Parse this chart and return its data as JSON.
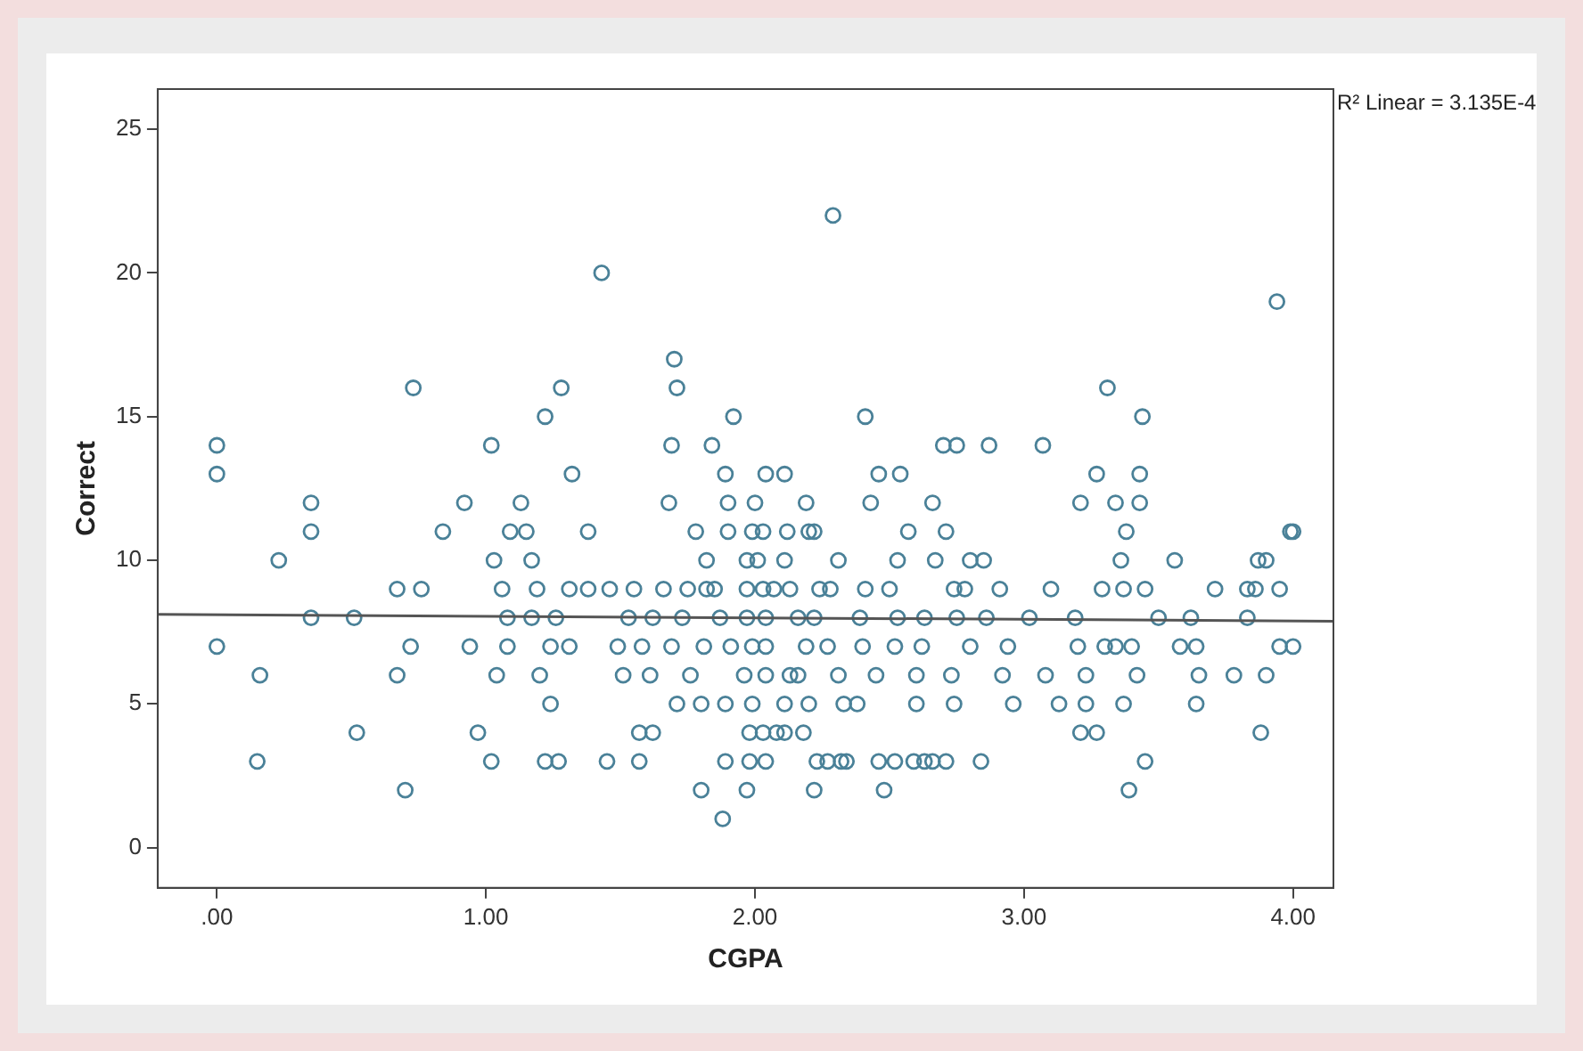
{
  "chart_data": {
    "type": "scatter",
    "xlabel": "CGPA",
    "ylabel": "Correct",
    "annotations": [
      "R² Linear = 3.135E-4"
    ],
    "xlim": [
      -0.22,
      4.15
    ],
    "xticks": [
      {
        "value": 0,
        "label": ".00"
      },
      {
        "value": 1,
        "label": "1.00"
      },
      {
        "value": 2,
        "label": "2.00"
      },
      {
        "value": 3,
        "label": "3.00"
      },
      {
        "value": 4,
        "label": "4.00"
      }
    ],
    "ylim": [
      -1.4,
      26.4
    ],
    "yticks": [
      0,
      5,
      10,
      15,
      20,
      25
    ],
    "grid": false,
    "legend": false,
    "series": [
      {
        "marker": "circle",
        "color": "#4a8198",
        "x": [
          2.29,
          1.43,
          3.94,
          1.7,
          0.73,
          1.28,
          1.71,
          3.31,
          1.22,
          1.92,
          2.41,
          3.44,
          0.0,
          1.02,
          1.69,
          1.84,
          2.7,
          2.75,
          2.87,
          3.07,
          0.0,
          1.32,
          1.89,
          2.04,
          2.11,
          2.46,
          2.54,
          3.27,
          3.43,
          0.35,
          0.92,
          1.13,
          1.68,
          1.9,
          2.0,
          2.19,
          2.43,
          2.66,
          3.21,
          3.34,
          3.43,
          0.35,
          0.84,
          1.09,
          1.15,
          1.38,
          1.78,
          1.9,
          1.99,
          2.03,
          2.12,
          2.2,
          2.22,
          2.57,
          2.71,
          3.38,
          3.99,
          4.0,
          0.23,
          1.03,
          1.17,
          1.82,
          1.97,
          2.01,
          2.11,
          2.31,
          2.53,
          2.67,
          2.8,
          2.85,
          3.36,
          3.56,
          3.87,
          3.9,
          0.67,
          0.76,
          1.06,
          1.19,
          1.31,
          1.38,
          1.46,
          1.55,
          1.66,
          1.75,
          1.82,
          1.85,
          1.97,
          2.03,
          2.07,
          2.13,
          2.24,
          2.28,
          2.41,
          2.5,
          2.74,
          2.78,
          2.91,
          3.1,
          3.29,
          3.37,
          3.45,
          3.71,
          3.83,
          3.86,
          3.95,
          0.35,
          0.51,
          1.08,
          1.17,
          1.26,
          1.53,
          1.62,
          1.73,
          1.87,
          1.97,
          2.04,
          2.16,
          2.22,
          2.39,
          2.53,
          2.63,
          2.75,
          2.86,
          3.02,
          3.19,
          3.5,
          3.62,
          3.83,
          0.0,
          0.72,
          0.94,
          1.08,
          1.24,
          1.31,
          1.49,
          1.58,
          1.69,
          1.81,
          1.91,
          1.99,
          2.04,
          2.19,
          2.27,
          2.4,
          2.52,
          2.62,
          2.8,
          2.94,
          3.2,
          3.3,
          3.34,
          3.4,
          3.58,
          3.64,
          3.95,
          4.0,
          0.16,
          0.67,
          1.04,
          1.2,
          1.51,
          1.61,
          1.76,
          1.96,
          2.04,
          2.13,
          2.16,
          2.31,
          2.45,
          2.6,
          2.73,
          2.92,
          3.08,
          3.23,
          3.42,
          3.65,
          3.78,
          3.9,
          1.24,
          1.71,
          1.8,
          1.89,
          1.99,
          2.11,
          2.2,
          2.33,
          2.38,
          2.6,
          2.74,
          2.96,
          3.13,
          3.23,
          3.37,
          3.64,
          0.52,
          0.97,
          1.57,
          1.62,
          1.98,
          2.03,
          2.08,
          2.11,
          2.18,
          3.21,
          3.27,
          3.88,
          0.15,
          1.02,
          1.22,
          1.27,
          1.45,
          1.57,
          1.89,
          1.98,
          2.04,
          2.23,
          2.27,
          2.32,
          2.34,
          2.46,
          2.52,
          2.59,
          2.63,
          2.66,
          2.71,
          2.84,
          3.45,
          0.7,
          1.8,
          1.97,
          2.22,
          2.48,
          3.39,
          1.88
        ],
        "values": [
          22,
          20,
          19,
          17,
          16,
          16,
          16,
          16,
          15,
          15,
          15,
          15,
          14,
          14,
          14,
          14,
          14,
          14,
          14,
          14,
          13,
          13,
          13,
          13,
          13,
          13,
          13,
          13,
          13,
          12,
          12,
          12,
          12,
          12,
          12,
          12,
          12,
          12,
          12,
          12,
          12,
          11,
          11,
          11,
          11,
          11,
          11,
          11,
          11,
          11,
          11,
          11,
          11,
          11,
          11,
          11,
          11,
          11,
          10,
          10,
          10,
          10,
          10,
          10,
          10,
          10,
          10,
          10,
          10,
          10,
          10,
          10,
          10,
          10,
          9,
          9,
          9,
          9,
          9,
          9,
          9,
          9,
          9,
          9,
          9,
          9,
          9,
          9,
          9,
          9,
          9,
          9,
          9,
          9,
          9,
          9,
          9,
          9,
          9,
          9,
          9,
          9,
          9,
          9,
          9,
          8,
          8,
          8,
          8,
          8,
          8,
          8,
          8,
          8,
          8,
          8,
          8,
          8,
          8,
          8,
          8,
          8,
          8,
          8,
          8,
          8,
          8,
          8,
          7,
          7,
          7,
          7,
          7,
          7,
          7,
          7,
          7,
          7,
          7,
          7,
          7,
          7,
          7,
          7,
          7,
          7,
          7,
          7,
          7,
          7,
          7,
          7,
          7,
          7,
          7,
          7,
          6,
          6,
          6,
          6,
          6,
          6,
          6,
          6,
          6,
          6,
          6,
          6,
          6,
          6,
          6,
          6,
          6,
          6,
          6,
          6,
          6,
          6,
          5,
          5,
          5,
          5,
          5,
          5,
          5,
          5,
          5,
          5,
          5,
          5,
          5,
          5,
          5,
          5,
          4,
          4,
          4,
          4,
          4,
          4,
          4,
          4,
          4,
          4,
          4,
          4,
          3,
          3,
          3,
          3,
          3,
          3,
          3,
          3,
          3,
          3,
          3,
          3,
          3,
          3,
          3,
          3,
          3,
          3,
          3,
          3,
          3,
          2,
          2,
          2,
          2,
          2,
          2,
          1
        ]
      },
      {
        "type": "line",
        "marker": "none",
        "color": "#555555",
        "x": [
          -0.22,
          4.15
        ],
        "values": [
          8.12,
          7.88
        ]
      }
    ]
  }
}
